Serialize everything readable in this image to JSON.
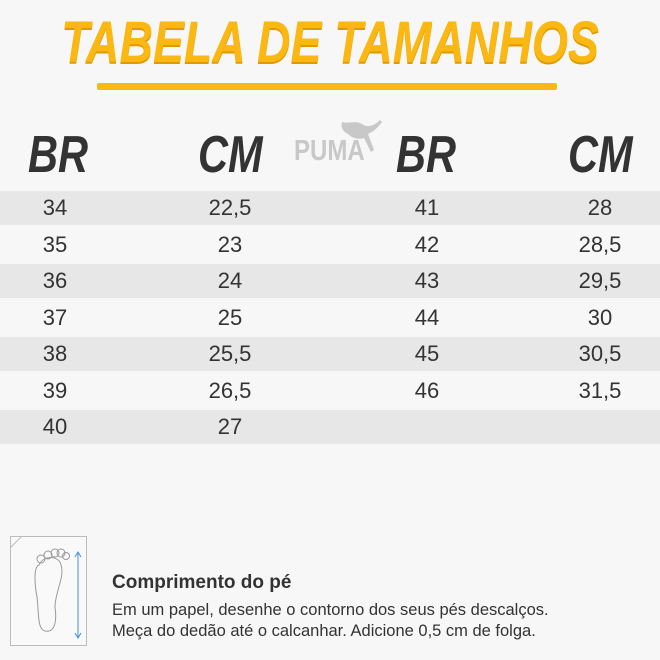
{
  "title": "TABELA DE TAMANHOS",
  "brand_logo": "PUMA",
  "colors": {
    "accent": "#fbb812",
    "text": "#333333",
    "row_shade": "#e7e7e7",
    "background": "#f7f7f7"
  },
  "headers": [
    "BR",
    "CM",
    "BR",
    "CM"
  ],
  "rows": [
    {
      "br1": "34",
      "cm1": "22,5",
      "br2": "41",
      "cm2": "28"
    },
    {
      "br1": "35",
      "cm1": "23",
      "br2": "42",
      "cm2": "28,5"
    },
    {
      "br1": "36",
      "cm1": "24",
      "br2": "43",
      "cm2": "29,5"
    },
    {
      "br1": "37",
      "cm1": "25",
      "br2": "44",
      "cm2": "30"
    },
    {
      "br1": "38",
      "cm1": "25,5",
      "br2": "45",
      "cm2": "30,5"
    },
    {
      "br1": "39",
      "cm1": "26,5",
      "br2": "46",
      "cm2": "31,5"
    },
    {
      "br1": "40",
      "cm1": "27",
      "br2": "",
      "cm2": ""
    }
  ],
  "instructions": {
    "icon": "foot-measure-icon",
    "heading": "Comprimento do pé",
    "line1": "Em um papel, desenhe o contorno dos seus pés descalços.",
    "line2": "Meça do dedão até o calcanhar. Adicione 0,5 cm de folga."
  }
}
